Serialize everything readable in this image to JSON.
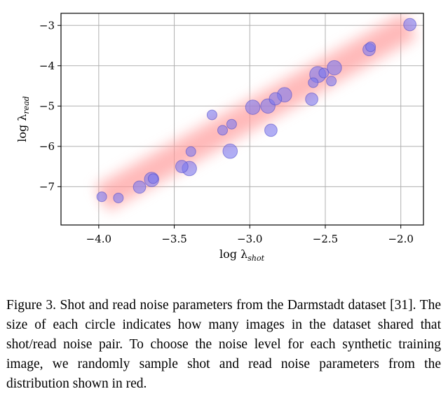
{
  "chart_data": {
    "type": "scatter",
    "title": "",
    "xlabel": "log λ",
    "xlabel_sub": "shot",
    "ylabel": "log λ",
    "ylabel_sub": "read",
    "xlim": [
      -4.25,
      -1.85
    ],
    "ylim": [
      -7.95,
      -2.7
    ],
    "xticks": [
      -4.0,
      -3.5,
      -3.0,
      -2.5,
      -2.0
    ],
    "xtick_labels": [
      "−4.0",
      "−3.5",
      "−3.0",
      "−2.5",
      "−2.0"
    ],
    "yticks": [
      -3,
      -4,
      -5,
      -6,
      -7
    ],
    "ytick_labels": [
      "−3",
      "−4",
      "−5",
      "−6",
      "−7"
    ],
    "grid": true,
    "point_color": "#7b78ee",
    "point_edge_color": "#4a47c8",
    "band_color": "#ff9999",
    "distribution_band": {
      "x_start": -3.98,
      "y_start": -7.3,
      "x_end": -1.94,
      "y_end": -3.0
    },
    "points": [
      {
        "x": -3.98,
        "y": -7.25,
        "n": 1
      },
      {
        "x": -3.87,
        "y": -7.28,
        "n": 1
      },
      {
        "x": -3.73,
        "y": -7.01,
        "n": 2
      },
      {
        "x": -3.65,
        "y": -6.82,
        "n": 3
      },
      {
        "x": -3.64,
        "y": -6.8,
        "n": 1
      },
      {
        "x": -3.45,
        "y": -6.5,
        "n": 2
      },
      {
        "x": -3.4,
        "y": -6.55,
        "n": 3
      },
      {
        "x": -3.39,
        "y": -6.13,
        "n": 1
      },
      {
        "x": -3.25,
        "y": -5.22,
        "n": 1
      },
      {
        "x": -3.18,
        "y": -5.6,
        "n": 1
      },
      {
        "x": -3.13,
        "y": -6.12,
        "n": 3
      },
      {
        "x": -3.12,
        "y": -5.45,
        "n": 1
      },
      {
        "x": -2.98,
        "y": -5.03,
        "n": 3
      },
      {
        "x": -2.88,
        "y": -5.0,
        "n": 3
      },
      {
        "x": -2.86,
        "y": -5.6,
        "n": 2
      },
      {
        "x": -2.83,
        "y": -4.82,
        "n": 2
      },
      {
        "x": -2.77,
        "y": -4.72,
        "n": 3
      },
      {
        "x": -2.59,
        "y": -4.83,
        "n": 2
      },
      {
        "x": -2.58,
        "y": -4.42,
        "n": 1
      },
      {
        "x": -2.55,
        "y": -4.22,
        "n": 4
      },
      {
        "x": -2.51,
        "y": -4.18,
        "n": 1
      },
      {
        "x": -2.46,
        "y": -4.38,
        "n": 1
      },
      {
        "x": -2.44,
        "y": -4.05,
        "n": 3
      },
      {
        "x": -2.21,
        "y": -3.6,
        "n": 2
      },
      {
        "x": -2.2,
        "y": -3.53,
        "n": 1
      },
      {
        "x": -1.94,
        "y": -2.98,
        "n": 2
      }
    ]
  },
  "caption": "Figure 3. Shot and read noise parameters from the Darmstadt dataset [31]. The size of each circle indicates how many images in the dataset shared that shot/read noise pair. To choose the noise level for each synthetic training image, we randomly sample shot and read noise parameters from the distribution shown in red."
}
